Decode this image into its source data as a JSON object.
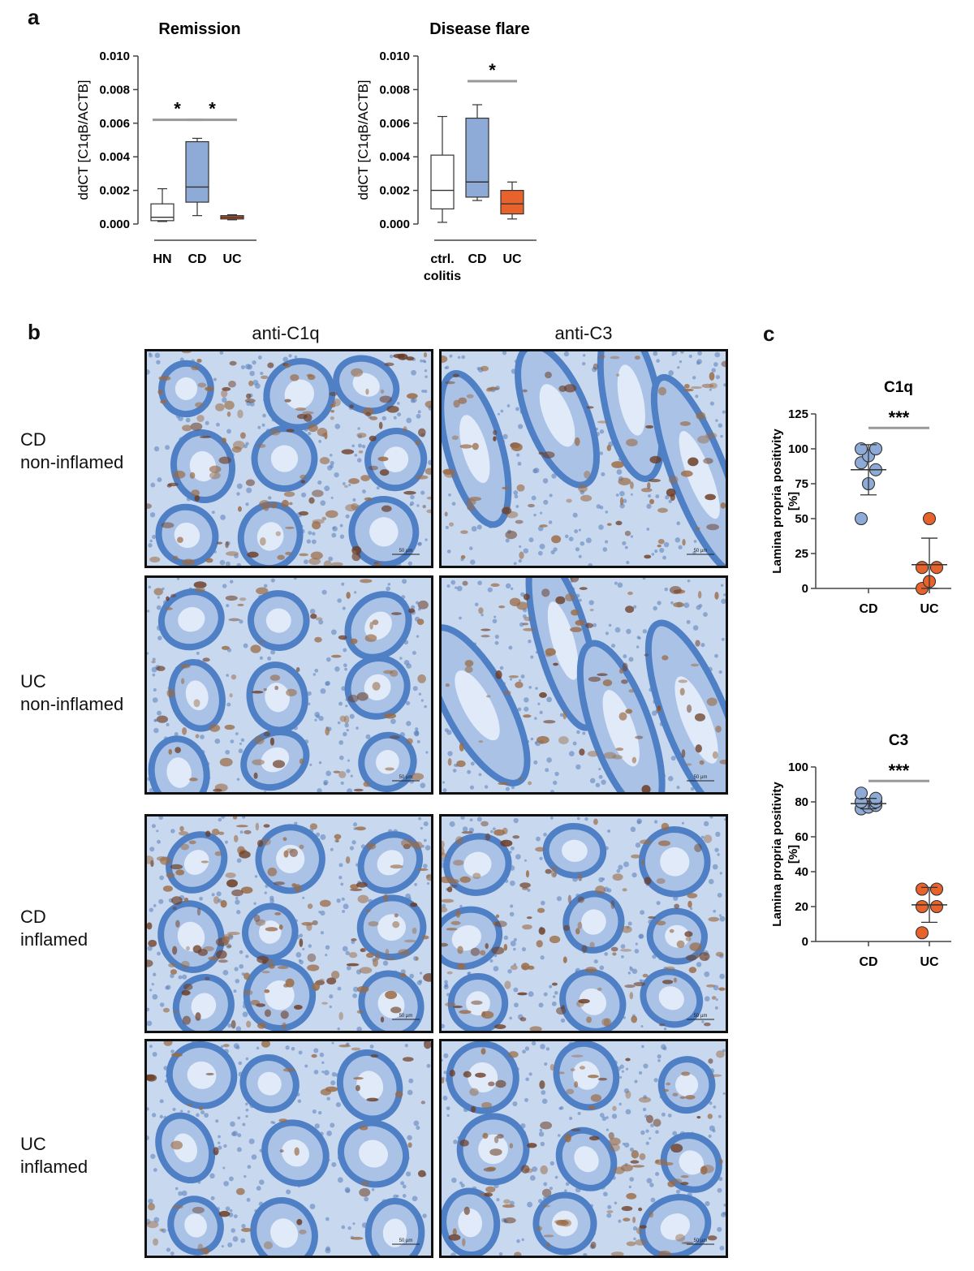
{
  "panel_letters": {
    "a": "a",
    "b": "b",
    "c": "c"
  },
  "panel_b": {
    "column_labels": [
      "anti-C1q",
      "anti-C3"
    ],
    "row_labels": [
      [
        "CD",
        "non-inflamed"
      ],
      [
        "UC",
        "non-inflamed"
      ],
      [
        "CD",
        "inflamed"
      ],
      [
        "UC",
        "inflamed"
      ]
    ],
    "scale_bar_label": "50 µm",
    "colors": {
      "tissue_blue": "#4f7fc4",
      "stain_brown": "#9a6a44",
      "background": "#c8d8ee"
    }
  },
  "chart_data": [
    {
      "type": "boxplot",
      "title": "Remission",
      "ylabel": "ddCT [C1qB/ACTB]",
      "ylim": [
        0.0,
        0.01
      ],
      "yticks": [
        "0.000",
        "0.002",
        "0.004",
        "0.006",
        "0.008",
        "0.010"
      ],
      "categories": [
        "HN",
        "CD",
        "UC"
      ],
      "boxes": [
        {
          "min": 0.00015,
          "q1": 0.0002,
          "median": 0.0004,
          "q3": 0.0012,
          "max": 0.0021,
          "color": "#ffffff"
        },
        {
          "min": 0.0005,
          "q1": 0.0013,
          "median": 0.0022,
          "q3": 0.0049,
          "max": 0.0051,
          "color": "#8eaad6"
        },
        {
          "min": 0.00025,
          "q1": 0.0003,
          "median": 0.0004,
          "q3": 0.0005,
          "max": 0.00055,
          "color": "#e8622c"
        }
      ],
      "significance": [
        {
          "from": 0,
          "to": 1,
          "y": 0.0062,
          "label": "*"
        },
        {
          "from": 1,
          "to": 2,
          "y": 0.0062,
          "label": "*"
        }
      ]
    },
    {
      "type": "boxplot",
      "title": "Disease flare",
      "ylabel": "ddCT [C1qB/ACTB]",
      "ylim": [
        0.0,
        0.01
      ],
      "yticks": [
        "0.000",
        "0.002",
        "0.004",
        "0.006",
        "0.008",
        "0.010"
      ],
      "categories": [
        "ctrl.\ncolitis",
        "CD",
        "UC"
      ],
      "boxes": [
        {
          "min": 0.0001,
          "q1": 0.0009,
          "median": 0.002,
          "q3": 0.0041,
          "max": 0.0064,
          "color": "#ffffff"
        },
        {
          "min": 0.0014,
          "q1": 0.0016,
          "median": 0.0025,
          "q3": 0.0063,
          "max": 0.0071,
          "color": "#8eaad6"
        },
        {
          "min": 0.0003,
          "q1": 0.0006,
          "median": 0.0012,
          "q3": 0.002,
          "max": 0.0025,
          "color": "#e8622c"
        }
      ],
      "significance": [
        {
          "from": 1,
          "to": 2,
          "y": 0.0085,
          "label": "*"
        }
      ]
    },
    {
      "type": "scatter",
      "title": "C1q",
      "ylabel": "Lamina propria positivity\n[%]",
      "ylim": [
        0,
        125
      ],
      "yticks": [
        "0",
        "25",
        "50",
        "75",
        "100",
        "125"
      ],
      "categories": [
        "CD",
        "UC"
      ],
      "groups": [
        {
          "values": [
            50,
            75,
            85,
            90,
            95,
            100,
            100
          ],
          "mean": 85,
          "sd_low": 67,
          "sd_high": 103,
          "color": "#8eaad6"
        },
        {
          "values": [
            0,
            5,
            15,
            15,
            50
          ],
          "mean": 17,
          "sd_low": 0,
          "sd_high": 36,
          "color": "#e8622c"
        }
      ],
      "significance": {
        "y": 115,
        "label": "***"
      }
    },
    {
      "type": "scatter",
      "title": "C3",
      "ylabel": "Lamina propria positivity\n[%]",
      "ylim": [
        0,
        100
      ],
      "yticks": [
        "0",
        "20",
        "40",
        "60",
        "80",
        "100"
      ],
      "categories": [
        "CD",
        "UC"
      ],
      "groups": [
        {
          "values": [
            76,
            77,
            78,
            80,
            80,
            82,
            85
          ],
          "mean": 79,
          "sd_low": 76,
          "sd_high": 82,
          "color": "#8eaad6"
        },
        {
          "values": [
            5,
            20,
            20,
            30,
            30
          ],
          "mean": 21,
          "sd_low": 11,
          "sd_high": 31,
          "color": "#e8622c"
        }
      ],
      "significance": {
        "y": 92,
        "label": "***"
      }
    }
  ]
}
